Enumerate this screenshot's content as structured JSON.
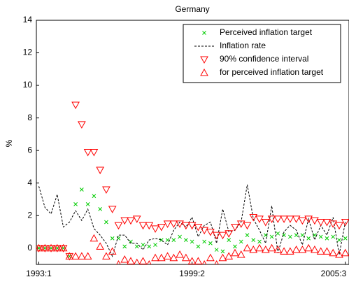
{
  "chart_data": {
    "type": "scatter",
    "title": "Germany",
    "y_label": "%",
    "xlim": [
      -0.4,
      50.6
    ],
    "ylim": [
      -1,
      14
    ],
    "xticks": [
      {
        "value": 0,
        "label": "1993:1"
      },
      {
        "value": 25,
        "label": "1999:2"
      },
      {
        "value": 50,
        "label": "2005:3"
      }
    ],
    "yticks": [
      0,
      2,
      4,
      6,
      8,
      10,
      12,
      14
    ],
    "x": [
      0,
      1,
      2,
      3,
      4,
      5,
      6,
      7,
      8,
      9,
      10,
      11,
      12,
      13,
      14,
      15,
      16,
      17,
      18,
      19,
      20,
      21,
      22,
      23,
      24,
      25,
      26,
      27,
      28,
      29,
      30,
      31,
      32,
      33,
      34,
      35,
      36,
      37,
      38,
      39,
      40,
      41,
      42,
      43,
      44,
      45,
      46,
      47,
      48,
      49,
      50
    ],
    "legend": "upper right",
    "series": [
      {
        "name": "Perceived inflation target",
        "color": "#00cc00",
        "marker": "x",
        "values": [
          0,
          0,
          0,
          0,
          0,
          -0.5,
          2.7,
          3.6,
          2.7,
          3.2,
          2.4,
          1.6,
          0.6,
          0.6,
          0.1,
          0.4,
          0.1,
          0.2,
          0.1,
          0.2,
          0.5,
          0.5,
          0.5,
          0.7,
          0.5,
          0.4,
          0.1,
          0.4,
          0.3,
          -0.1,
          -0.2,
          0.5,
          0.1,
          0.4,
          0.8,
          0.5,
          0.4,
          0.8,
          0.7,
          0.9,
          0.8,
          0.7,
          0.8,
          0.8,
          0.6,
          0.8,
          0.7,
          0.6,
          0.7,
          0.5,
          0.6
        ]
      },
      {
        "name": "Inflation rate",
        "color": "#000000",
        "marker": "dashed-line",
        "values": [
          3.8,
          2.5,
          2.1,
          3.3,
          1.3,
          1.6,
          2.3,
          1.7,
          2.4,
          1.2,
          0.8,
          0.3,
          -0.5,
          0.8,
          0.8,
          0.3,
          0.3,
          -0.1,
          0.5,
          0.6,
          0.5,
          0.2,
          1.1,
          1.6,
          1.3,
          1.9,
          0.7,
          1.4,
          1.6,
          0.3,
          2.4,
          1.0,
          1.1,
          1.6,
          3.9,
          1.8,
          1.1,
          0.3,
          2.6,
          -0.3,
          1.0,
          1.4,
          1.1,
          0.2,
          1.8,
          0.5,
          1.4,
          0.8,
          1.9,
          -0.4,
          1.6
        ]
      },
      {
        "name": "90% confidence interval",
        "color": "#ff0000",
        "marker": "triangle-down",
        "values": [
          0,
          0,
          0,
          0,
          0,
          -0.5,
          8.8,
          7.6,
          5.9,
          5.9,
          4.8,
          3.6,
          2.4,
          1.4,
          1.7,
          1.7,
          1.8,
          1.4,
          1.4,
          1.2,
          1.3,
          1.5,
          1.5,
          1.5,
          1.4,
          1.4,
          1.3,
          1.1,
          1.0,
          0.8,
          0.8,
          0.9,
          1.3,
          1.5,
          1.4,
          1.9,
          1.8,
          1.6,
          1.8,
          1.8,
          1.8,
          1.8,
          1.8,
          1.7,
          1.8,
          1.7,
          1.6,
          1.6,
          1.5,
          1.4,
          1.6
        ]
      },
      {
        "name": "for perceived inflation target",
        "color": "#ff0000",
        "marker": "triangle-up",
        "values": [
          0,
          0,
          0,
          0,
          0,
          -0.5,
          -0.5,
          -0.5,
          -0.5,
          0.6,
          0.1,
          -0.5,
          -0.2,
          -1.0,
          -0.7,
          -0.8,
          -0.9,
          -0.8,
          -1.0,
          -0.6,
          -0.6,
          -0.5,
          -0.6,
          -0.4,
          -0.6,
          -0.8,
          -0.8,
          -1.0,
          -0.6,
          -1.0,
          -0.6,
          -0.5,
          -0.3,
          -0.4,
          0.0,
          -0.1,
          0.0,
          -0.1,
          0.0,
          -0.1,
          -0.2,
          -0.2,
          -0.1,
          -0.1,
          0.0,
          -0.1,
          -0.2,
          -0.2,
          -0.3,
          -0.4,
          -0.3
        ]
      }
    ]
  }
}
